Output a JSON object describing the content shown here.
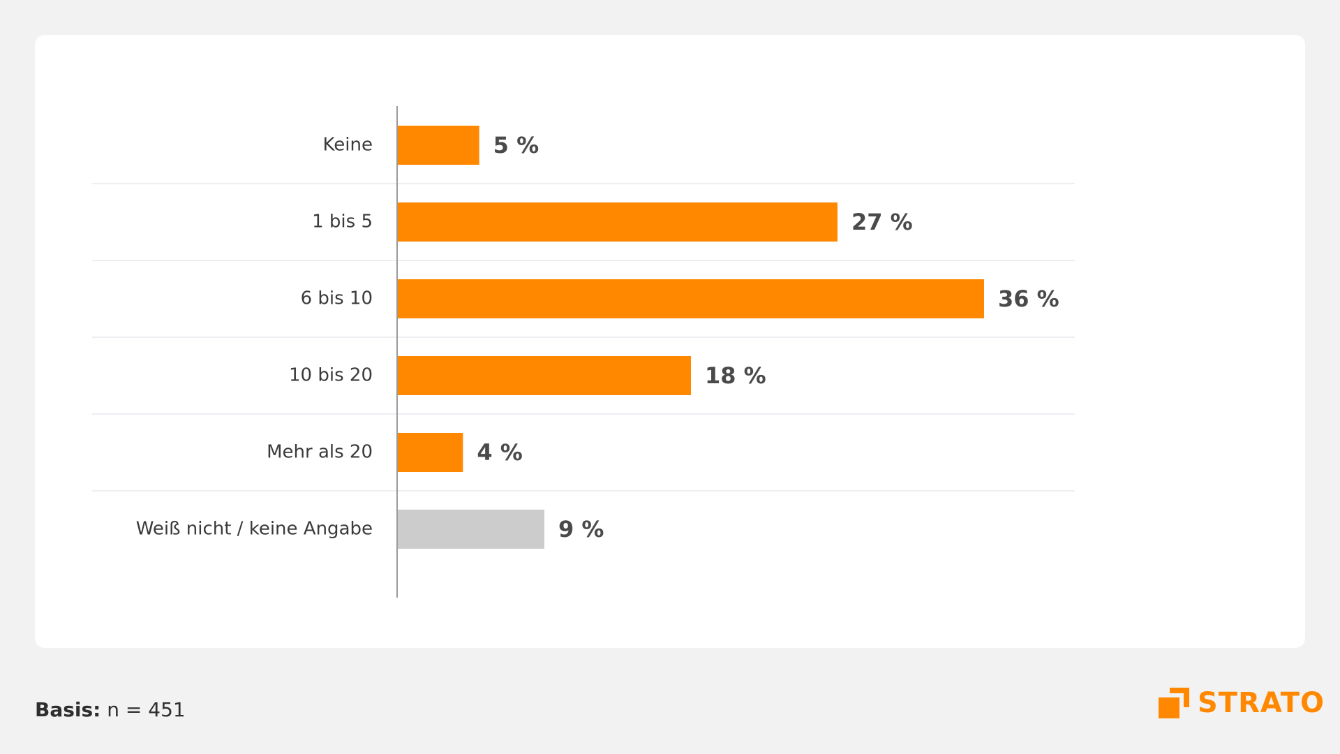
{
  "chart_data": {
    "type": "bar",
    "orientation": "horizontal",
    "categories": [
      "Keine",
      "1 bis 5",
      "6 bis 10",
      "10 bis 20",
      "Mehr als 20",
      "Weiß nicht / keine Angabe"
    ],
    "values": [
      5,
      27,
      36,
      18,
      4,
      9
    ],
    "value_labels": [
      "5 %",
      "27 %",
      "36 %",
      "18 %",
      "4 %",
      "9 %"
    ],
    "xlim": [
      0,
      36
    ],
    "colors": [
      "#ff8800",
      "#ff8800",
      "#ff8800",
      "#ff8800",
      "#ff8800",
      "#cccccc"
    ],
    "grid": false
  },
  "footer": {
    "basis_label": "Basis:",
    "basis_value": "n = 451"
  },
  "logo": {
    "text": "STRATO",
    "color": "#ff8800"
  }
}
